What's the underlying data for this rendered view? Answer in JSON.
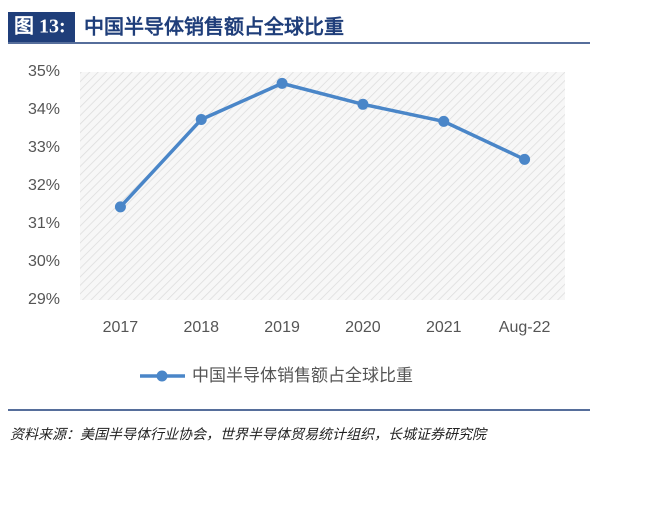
{
  "header": {
    "label": "图 13:",
    "title": "中国半导体销售额占全球比重"
  },
  "chart_data": {
    "type": "line",
    "categories": [
      "2017",
      "2018",
      "2019",
      "2020",
      "2021",
      "Aug-22"
    ],
    "series": [
      {
        "name": "中国半导体销售额占全球比重",
        "color": "#4a86c8",
        "values": [
          31.45,
          33.75,
          34.7,
          34.15,
          33.7,
          32.7
        ]
      }
    ],
    "ylim": [
      29,
      35
    ],
    "yticks": [
      {
        "value": 29,
        "label": "29%"
      },
      {
        "value": 30,
        "label": "30%"
      },
      {
        "value": 31,
        "label": "31%"
      },
      {
        "value": 32,
        "label": "32%"
      },
      {
        "value": 33,
        "label": "33%"
      },
      {
        "value": 34,
        "label": "34%"
      },
      {
        "value": 35,
        "label": "35%"
      }
    ],
    "legend": "bottom"
  },
  "source": "资料来源：美国半导体行业协会，世界半导体贸易统计组织，长城证券研究院"
}
